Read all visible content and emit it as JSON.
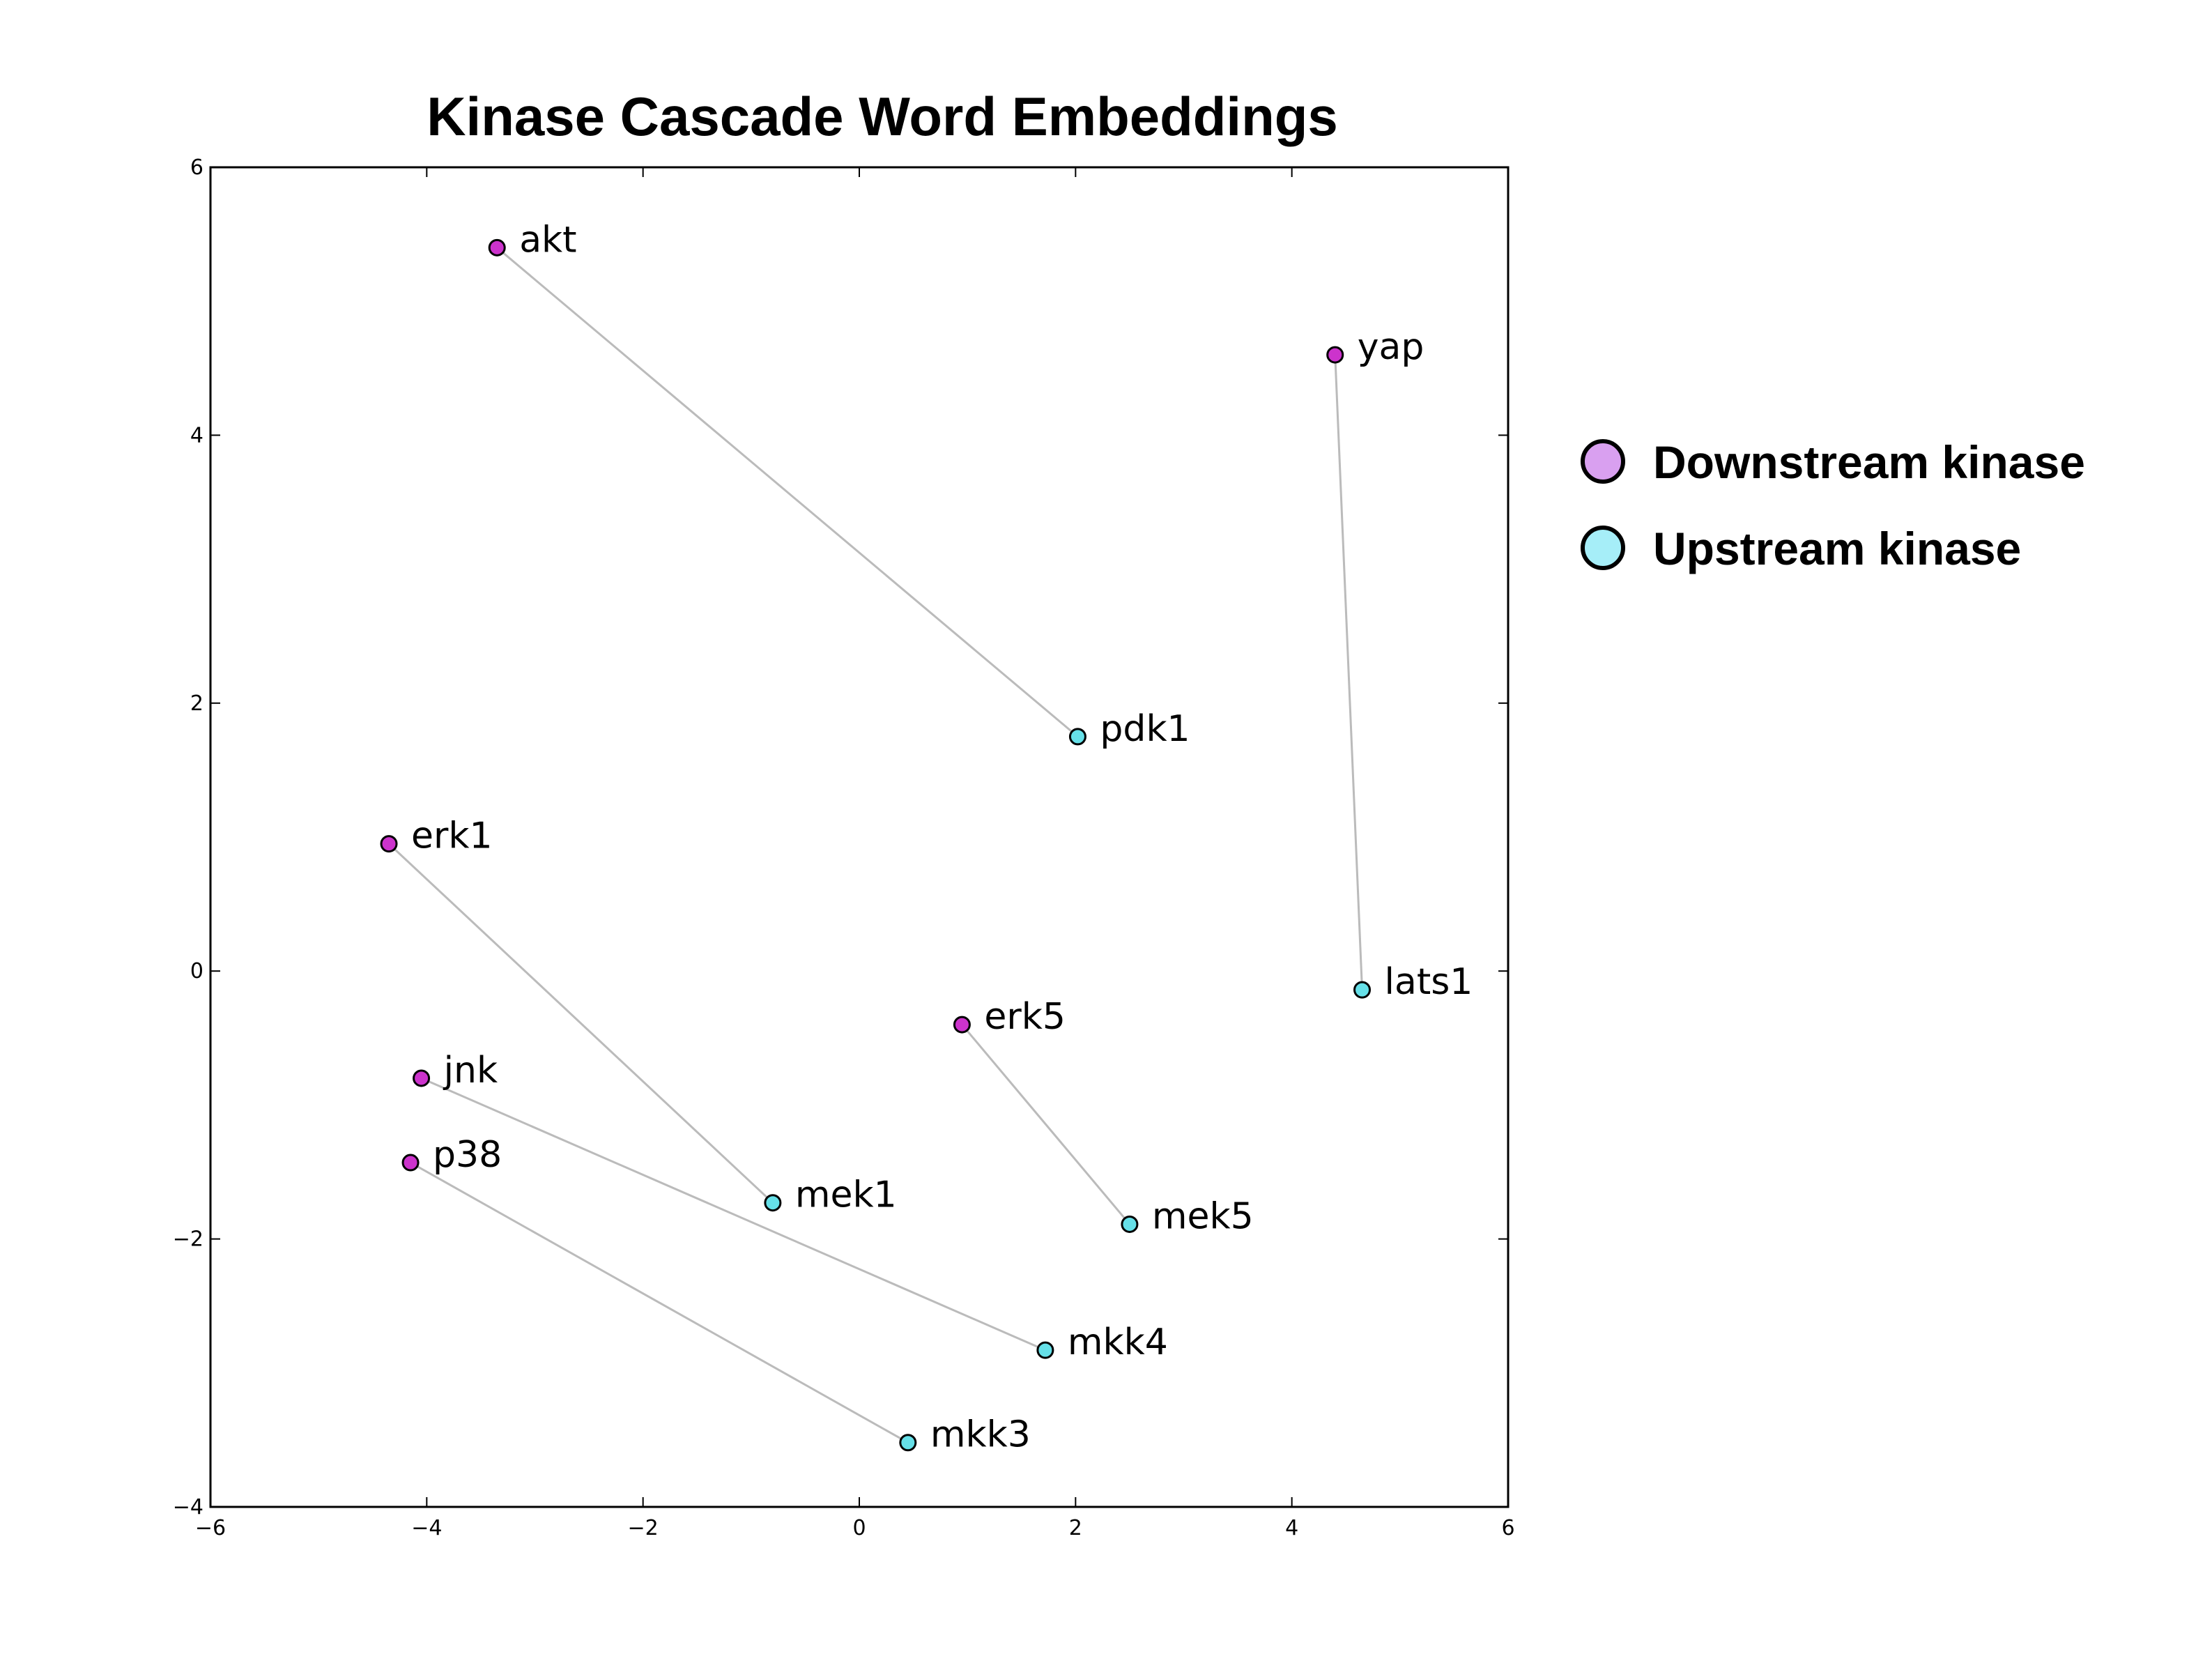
{
  "chart_data": {
    "type": "scatter",
    "title": "Kinase Cascade Word Embeddings",
    "xlabel": "",
    "ylabel": "",
    "xlim": [
      -6,
      6
    ],
    "ylim": [
      -4,
      6
    ],
    "x_ticks": [
      -6,
      -4,
      -2,
      0,
      2,
      4,
      6
    ],
    "y_ticks": [
      -4,
      -2,
      0,
      2,
      4,
      6
    ],
    "x_tick_labels": [
      "−6",
      "−4",
      "−2",
      "0",
      "2",
      "4",
      "6"
    ],
    "y_tick_labels": [
      "−4",
      "−2",
      "0",
      "2",
      "4",
      "6"
    ],
    "grid": false,
    "legend_position": "right",
    "series": [
      {
        "name": "Downstream kinase",
        "color": "#cc33cc",
        "legend_color": "#d9a0f0",
        "points": [
          {
            "label": "akt",
            "x": -3.35,
            "y": 5.4
          },
          {
            "label": "yap",
            "x": 4.4,
            "y": 4.6
          },
          {
            "label": "erk1",
            "x": -4.35,
            "y": 0.95
          },
          {
            "label": "erk5",
            "x": 0.95,
            "y": -0.4
          },
          {
            "label": "jnk",
            "x": -4.05,
            "y": -0.8
          },
          {
            "label": "p38",
            "x": -4.15,
            "y": -1.43
          }
        ]
      },
      {
        "name": "Upstream kinase",
        "color": "#66e0e8",
        "legend_color": "#a6eef8",
        "points": [
          {
            "label": "pdk1",
            "x": 2.02,
            "y": 1.75
          },
          {
            "label": "lats1",
            "x": 4.65,
            "y": -0.14
          },
          {
            "label": "mek1",
            "x": -0.8,
            "y": -1.73
          },
          {
            "label": "mek5",
            "x": 2.5,
            "y": -1.89
          },
          {
            "label": "mkk4",
            "x": 1.72,
            "y": -2.83
          },
          {
            "label": "mkk3",
            "x": 0.45,
            "y": -3.52
          }
        ]
      }
    ],
    "links": [
      [
        "akt",
        "pdk1"
      ],
      [
        "yap",
        "lats1"
      ],
      [
        "erk1",
        "mek1"
      ],
      [
        "erk5",
        "mek5"
      ],
      [
        "jnk",
        "mkk4"
      ],
      [
        "p38",
        "mkk3"
      ]
    ],
    "link_color": "#bbbbbb"
  }
}
